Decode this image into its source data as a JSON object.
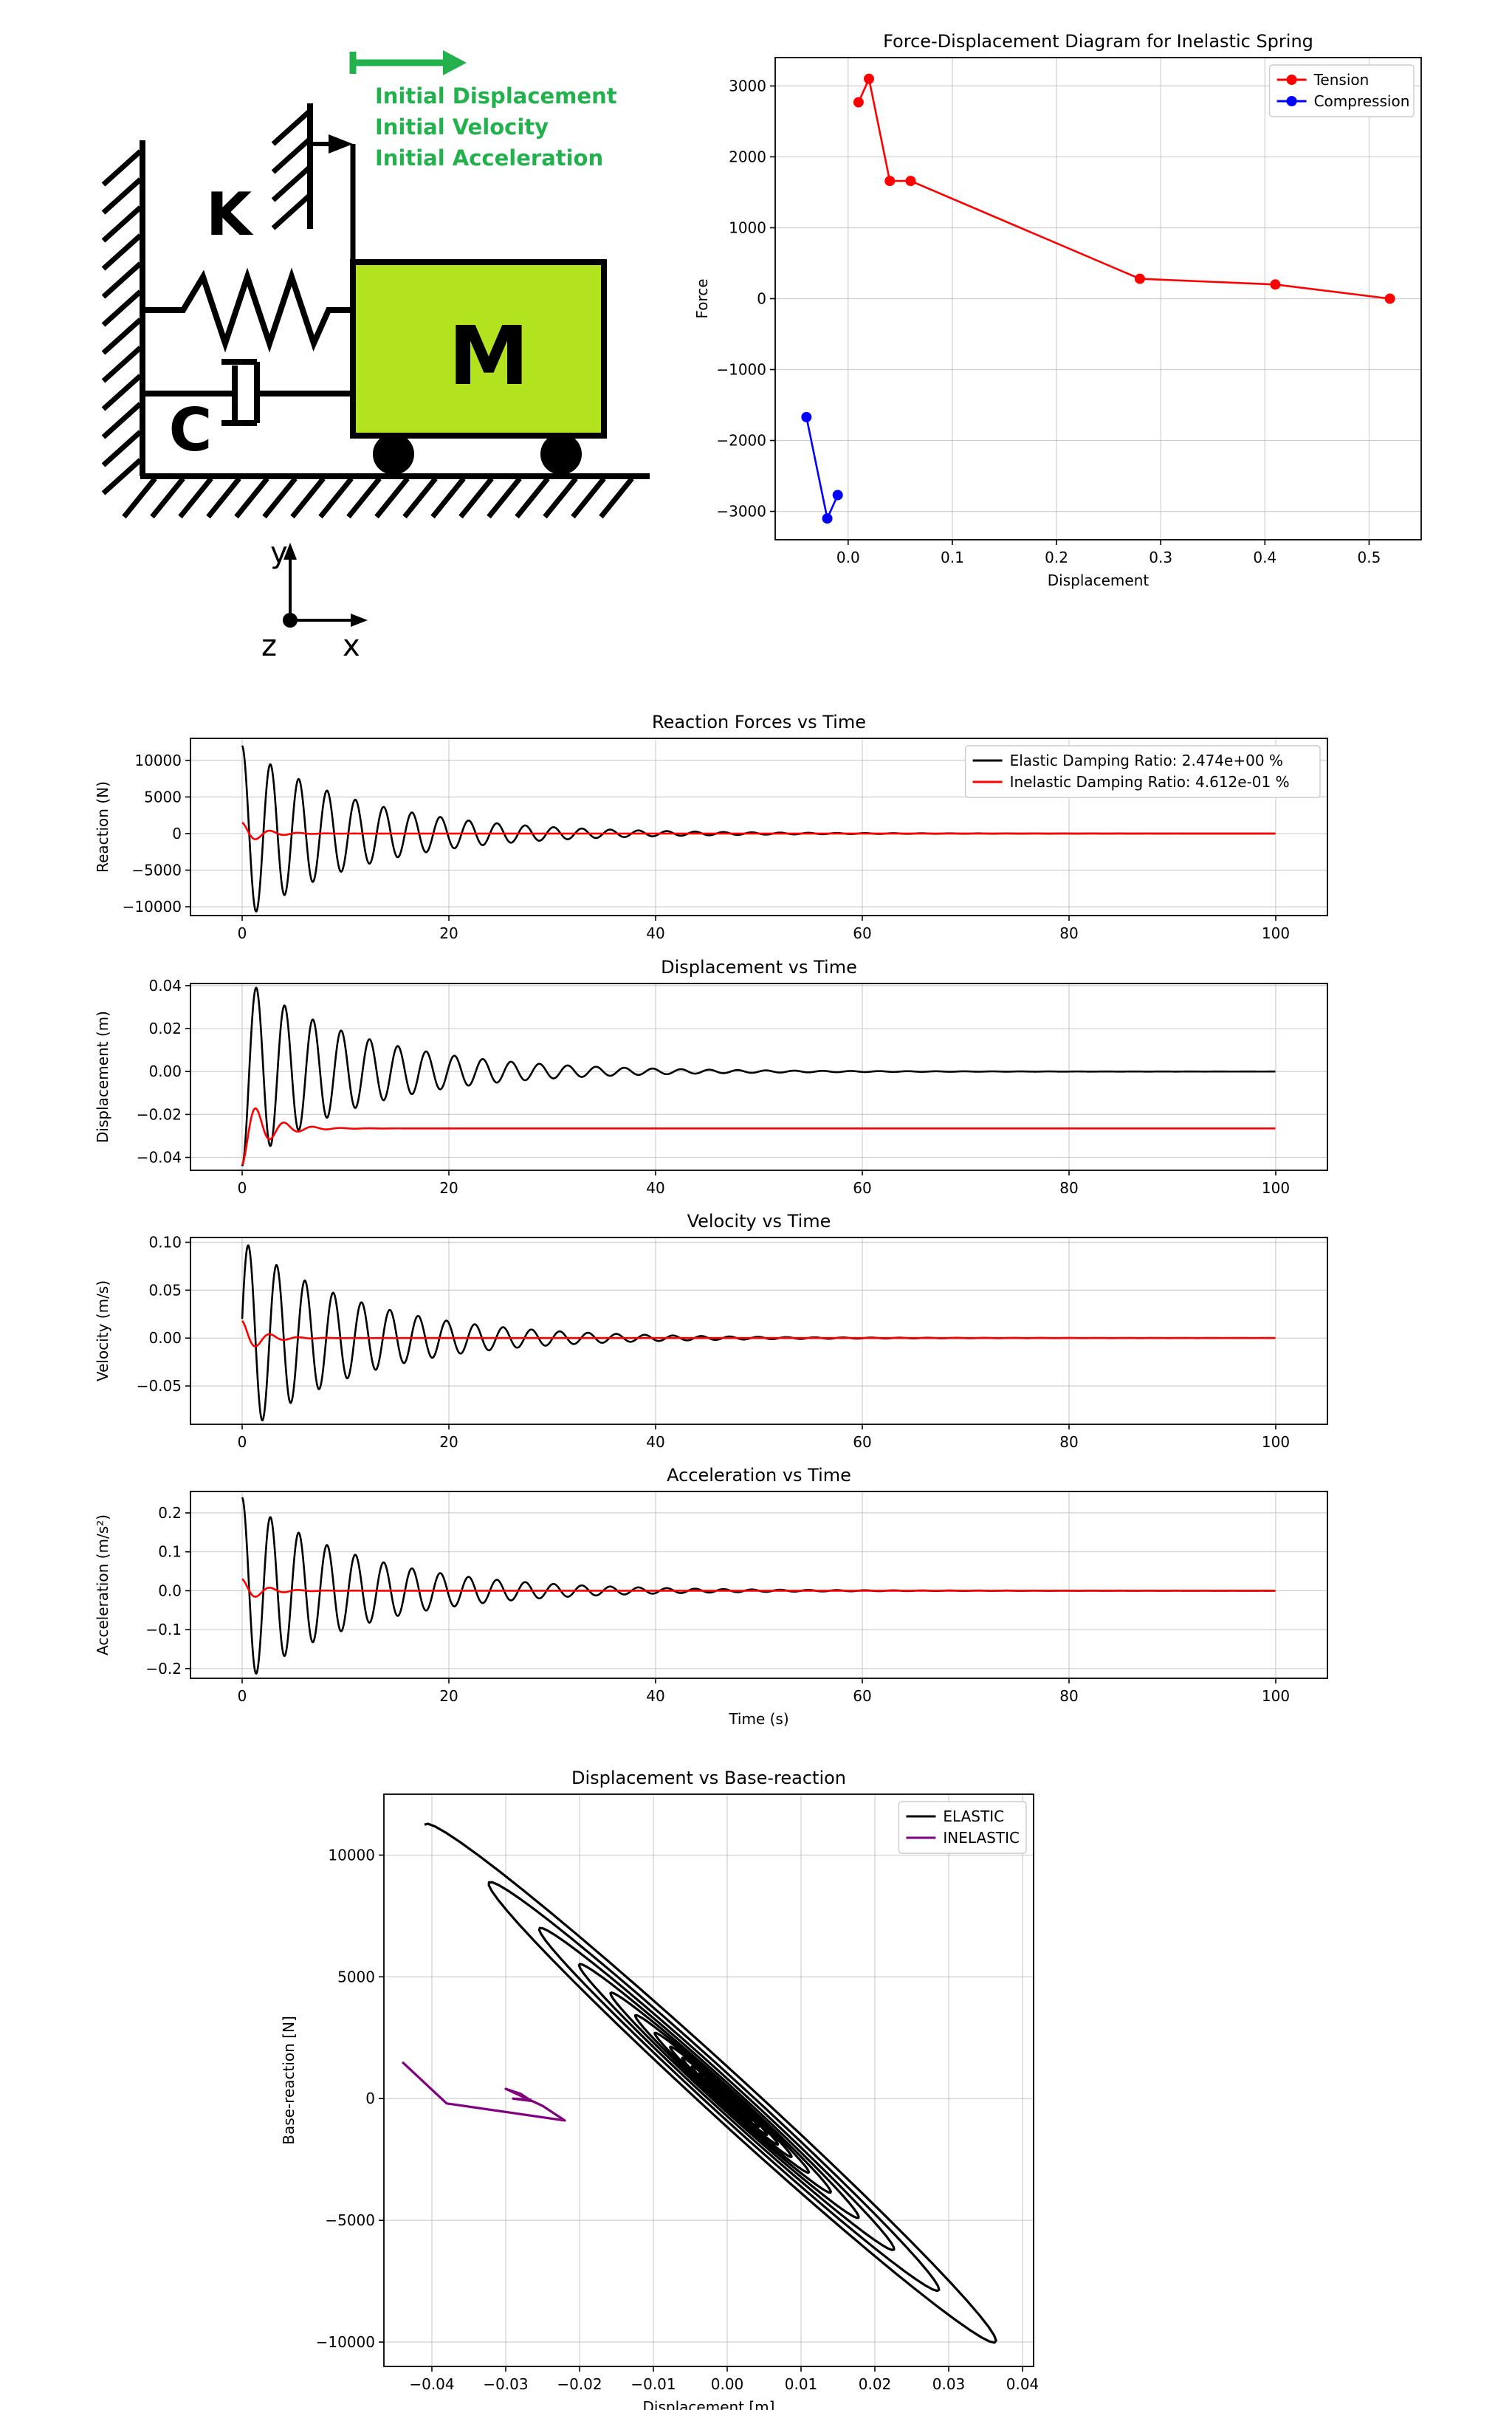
{
  "schematic": {
    "labels": {
      "initial_displacement": "Initial Displacement",
      "initial_velocity": "Initial Velocity",
      "initial_acceleration": "Initial Acceleration",
      "spring": "K",
      "damper": "C",
      "mass": "M",
      "axis_y": "y",
      "axis_x": "x",
      "axis_z": "z"
    },
    "colors": {
      "mass_fill": "#b2e31e",
      "arrow": "#22b14c",
      "text_green": "#22b14c",
      "outline": "#000000"
    }
  },
  "chart_data": [
    {
      "id": "force-displacement",
      "type": "line",
      "title": "Force-Displacement Diagram for Inelastic Spring",
      "xlabel": "Displacement",
      "ylabel": "Force",
      "xlim": [
        -0.07,
        0.55
      ],
      "ylim": [
        -3400,
        3400
      ],
      "xticks": [
        0.0,
        0.1,
        0.2,
        0.3,
        0.4,
        0.5
      ],
      "xtick_labels": [
        "0.0",
        "0.1",
        "0.2",
        "0.3",
        "0.4",
        "0.5"
      ],
      "yticks": [
        -3000,
        -2000,
        -1000,
        0,
        1000,
        2000,
        3000
      ],
      "ytick_labels": [
        "−3000",
        "−2000",
        "−1000",
        "0",
        "1000",
        "2000",
        "3000"
      ],
      "grid": true,
      "legend": "top-right",
      "series": [
        {
          "name": "Tension",
          "color": "#ff0000",
          "marker": "circle",
          "x": [
            0.01,
            0.02,
            0.04,
            0.06,
            0.28,
            0.41,
            0.52
          ],
          "y": [
            2770,
            3100,
            1660,
            1660,
            280,
            200,
            0
          ]
        },
        {
          "name": "Compression",
          "color": "#0000ff",
          "marker": "circle",
          "x": [
            -0.04,
            -0.02,
            -0.01
          ],
          "y": [
            -1670,
            -3100,
            -2770
          ]
        }
      ]
    },
    {
      "id": "reaction-forces",
      "type": "line",
      "title": "Reaction Forces vs Time",
      "xlabel": "",
      "ylabel": "Reaction (N)",
      "xlim": [
        -5,
        105
      ],
      "ylim": [
        -11200,
        13000
      ],
      "xticks": [
        0,
        20,
        40,
        60,
        80,
        100
      ],
      "xtick_labels": [
        "0",
        "20",
        "40",
        "60",
        "80",
        "100"
      ],
      "yticks": [
        -10000,
        -5000,
        0,
        5000,
        10000
      ],
      "ytick_labels": [
        "−10000",
        "−5000",
        "0",
        "5000",
        "10000"
      ],
      "grid": true,
      "legend": "top-right",
      "series": [
        {
          "name": "Elastic Damping Ratio: 2.474e+00 %",
          "color": "#000000",
          "model": {
            "kind": "damped",
            "a0": 12000,
            "decay": 0.087,
            "freq": 0.365,
            "phase": 0.0,
            "offset": 0,
            "t_end": 100
          }
        },
        {
          "name": "Inelastic Damping Ratio: 4.612e-01 %",
          "color": "#ff0000",
          "model": {
            "kind": "damped",
            "a0": 1500,
            "decay": 0.5,
            "freq": 0.365,
            "phase": 0.0,
            "offset": 0,
            "t_end": 100
          }
        }
      ]
    },
    {
      "id": "displacement-time",
      "type": "line",
      "title": "Displacement vs Time",
      "xlabel": "",
      "ylabel": "Displacement (m)",
      "xlim": [
        -5,
        105
      ],
      "ylim": [
        -0.046,
        0.041
      ],
      "xticks": [
        0,
        20,
        40,
        60,
        80,
        100
      ],
      "xtick_labels": [
        "0",
        "20",
        "40",
        "60",
        "80",
        "100"
      ],
      "yticks": [
        -0.04,
        -0.02,
        0.0,
        0.02,
        0.04
      ],
      "ytick_labels": [
        "−0.04",
        "−0.02",
        "0.00",
        "0.02",
        "0.04"
      ],
      "grid": true,
      "series": [
        {
          "name": "",
          "color": "#000000",
          "model": {
            "kind": "damped",
            "a0": -0.044,
            "decay": 0.087,
            "freq": 0.365,
            "phase": 0.0,
            "offset": 0,
            "t_end": 100
          }
        },
        {
          "name": "",
          "color": "#ff0000",
          "model": {
            "kind": "damped",
            "a0": -0.017,
            "decay": 0.45,
            "freq": 0.365,
            "phase": 0.0,
            "offset": -0.0265,
            "t_end": 100
          }
        }
      ]
    },
    {
      "id": "velocity-time",
      "type": "line",
      "title": "Velocity vs Time",
      "xlabel": "",
      "ylabel": "Velocity (m/s)",
      "xlim": [
        -5,
        105
      ],
      "ylim": [
        -0.09,
        0.105
      ],
      "xticks": [
        0,
        20,
        40,
        60,
        80,
        100
      ],
      "xtick_labels": [
        "0",
        "20",
        "40",
        "60",
        "80",
        "100"
      ],
      "yticks": [
        -0.05,
        0.0,
        0.05,
        0.1
      ],
      "ytick_labels": [
        "−0.05",
        "0.00",
        "0.05",
        "0.10"
      ],
      "grid": true,
      "series": [
        {
          "name": "",
          "color": "#000000",
          "model": {
            "kind": "damped",
            "a0": 0.02,
            "decay": 0.087,
            "freq": 0.365,
            "phase": 0.0,
            "offset": 0,
            "amp_boost": 0.1,
            "t_end": 100
          }
        },
        {
          "name": "",
          "color": "#ff0000",
          "model": {
            "kind": "damped",
            "a0": 0.018,
            "decay": 0.55,
            "freq": 0.365,
            "phase": 0.0,
            "offset": 0,
            "t_end": 100
          }
        }
      ]
    },
    {
      "id": "acceleration-time",
      "type": "line",
      "title": "Acceleration vs Time",
      "xlabel": "Time (s)",
      "ylabel": "Acceleration (m/s²)",
      "xlim": [
        -5,
        105
      ],
      "ylim": [
        -0.225,
        0.255
      ],
      "xticks": [
        0,
        20,
        40,
        60,
        80,
        100
      ],
      "xtick_labels": [
        "0",
        "20",
        "40",
        "60",
        "80",
        "100"
      ],
      "yticks": [
        -0.2,
        -0.1,
        0.0,
        0.1,
        0.2
      ],
      "ytick_labels": [
        "−0.2",
        "−0.1",
        "0.0",
        "0.1",
        "0.2"
      ],
      "grid": true,
      "series": [
        {
          "name": "",
          "color": "#000000",
          "model": {
            "kind": "damped",
            "a0": 0.24,
            "decay": 0.087,
            "freq": 0.365,
            "phase": 0.0,
            "offset": 0,
            "t_end": 100
          }
        },
        {
          "name": "",
          "color": "#ff0000",
          "model": {
            "kind": "damped",
            "a0": 0.03,
            "decay": 0.5,
            "freq": 0.365,
            "phase": 0.0,
            "offset": 0,
            "t_end": 100
          }
        }
      ]
    },
    {
      "id": "displacement-base-reaction",
      "type": "line",
      "title": "Displacement vs Base-reaction",
      "xlabel": "Displacement [m]",
      "ylabel": "Base-reaction [N]",
      "xlim": [
        -0.0465,
        0.0415
      ],
      "ylim": [
        -11000,
        12500
      ],
      "xticks": [
        -0.04,
        -0.03,
        -0.02,
        -0.01,
        0.0,
        0.01,
        0.02,
        0.03,
        0.04
      ],
      "xtick_labels": [
        "−0.04",
        "−0.03",
        "−0.02",
        "−0.01",
        "0.00",
        "0.01",
        "0.02",
        "0.03",
        "0.04"
      ],
      "yticks": [
        -10000,
        -5000,
        0,
        5000,
        10000
      ],
      "ytick_labels": [
        "−10000",
        "−5000",
        "0",
        "5000",
        "10000"
      ],
      "grid": true,
      "legend": "top-right",
      "series": [
        {
          "name": "ELASTIC",
          "color": "#000000",
          "model": {
            "kind": "ellipse",
            "x0": -0.044,
            "y0": 12000,
            "x1": 0.038,
            "y1": -10500,
            "decay": 0.087,
            "freq": 0.365,
            "t_end": 100
          }
        },
        {
          "name": "INELASTIC",
          "color": "#800080",
          "points": {
            "x": [
              -0.044,
              -0.038,
              -0.022,
              -0.025,
              -0.03,
              -0.028,
              -0.0265,
              -0.029,
              -0.0265
            ],
            "y": [
              1500,
              -200,
              -900,
              -300,
              400,
              200,
              -100,
              0,
              -50
            ]
          }
        }
      ]
    }
  ]
}
